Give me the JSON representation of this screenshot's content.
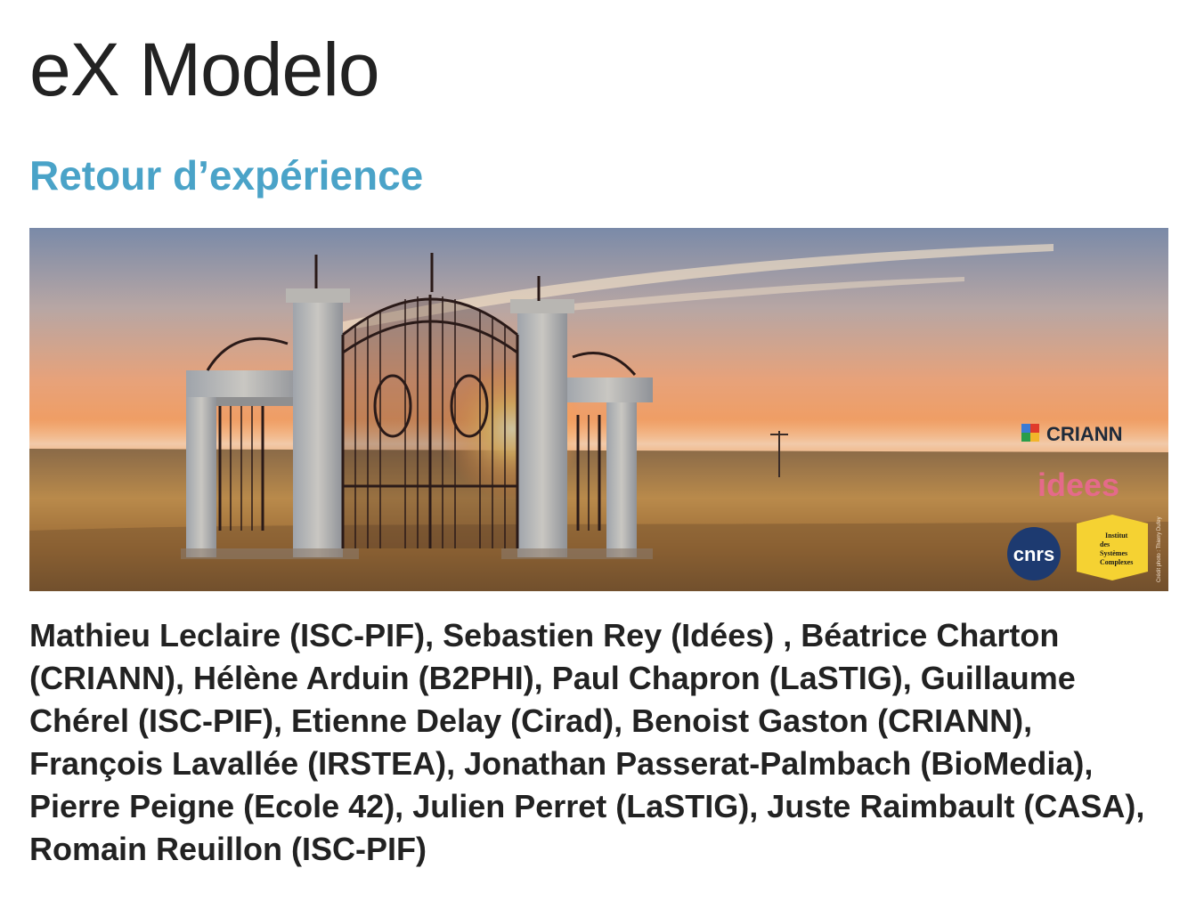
{
  "page": {
    "title": "eX Modelo",
    "subtitle": "Retour d’expérience",
    "authors": "Mathieu Leclaire (ISC-PIF), Sebastien Rey (Idées) , Béatrice Charton (CRIANN), Hélène Arduin (B2PHI), Paul Chapron (LaSTIG), Guillaume Chérel (ISC-PIF), Etienne Delay (Cirad), Benoist Gaston (CRIANN), François Lavallée (IRSTEA), Jonathan Passerat-Palmbach (BioMedia), Pierre Peigne (Ecole 42), Julien Perret (LaSTIG), Juste Raimbault (CASA), Romain Reuillon (ISC-PIF)"
  },
  "banner": {
    "logos": {
      "criann": "CRIANN",
      "idees": "idees",
      "cnrs": "cnrs",
      "iscpif": [
        "Institut",
        "des",
        "Systèmes",
        "Complexes"
      ]
    },
    "credit": "Crédit photo : Thierry Dufey"
  },
  "colors": {
    "subtitle": "#4aa3c8",
    "text": "#222222"
  }
}
